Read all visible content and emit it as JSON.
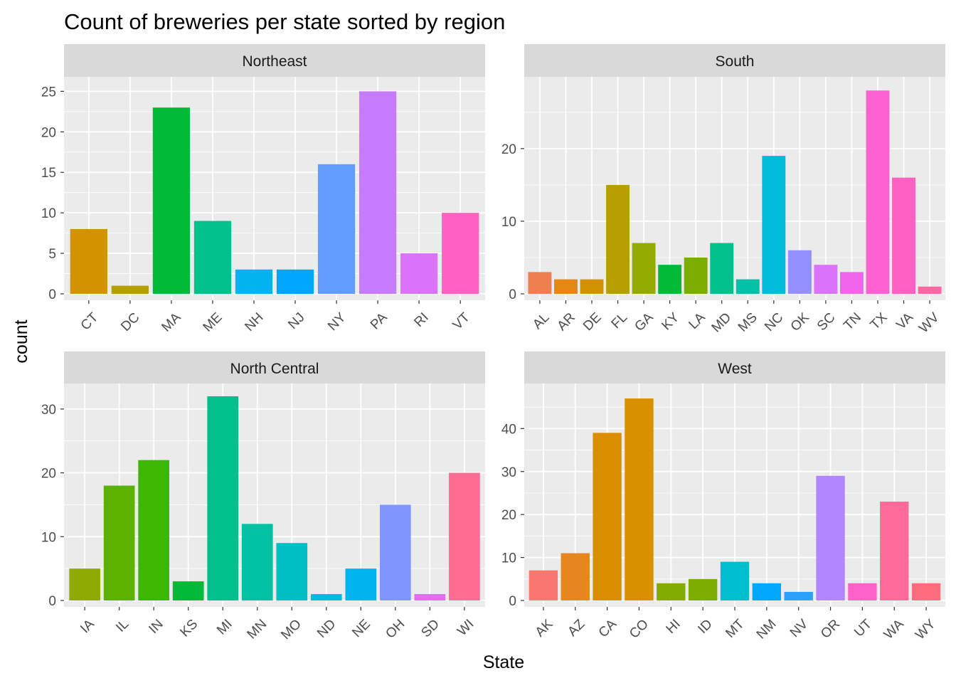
{
  "chart_data": {
    "type": "bar",
    "title": "Count of breweries per state sorted by region",
    "xlabel": "State",
    "ylabel": "count",
    "grid": true,
    "legend": "none",
    "panels": [
      {
        "name": "Northeast",
        "categories": [
          "CT",
          "DC",
          "MA",
          "ME",
          "NH",
          "NJ",
          "NY",
          "PA",
          "RI",
          "VT"
        ],
        "values": [
          8,
          1,
          23,
          9,
          3,
          3,
          16,
          25,
          5,
          10
        ],
        "colors": [
          "#D39200",
          "#B79F00",
          "#00BA38",
          "#00C08B",
          "#00B4F0",
          "#00A5FF",
          "#619CFF",
          "#C77CFF",
          "#DB72FB",
          "#FF61C3"
        ],
        "ylim": [
          0,
          26
        ],
        "yticks": [
          0,
          5,
          10,
          15,
          20,
          25
        ]
      },
      {
        "name": "South",
        "categories": [
          "AL",
          "AR",
          "DE",
          "FL",
          "GA",
          "KY",
          "LA",
          "MD",
          "MS",
          "NC",
          "OK",
          "SC",
          "TN",
          "TX",
          "VA",
          "WV"
        ],
        "values": [
          3,
          2,
          2,
          15,
          7,
          4,
          5,
          7,
          2,
          19,
          6,
          4,
          3,
          28,
          16,
          1
        ],
        "colors": [
          "#F07F4F",
          "#E68613",
          "#D39200",
          "#B79F00",
          "#93AA00",
          "#00BA38",
          "#7CAE00",
          "#00C08B",
          "#00C1A8",
          "#00BCD8",
          "#9590FF",
          "#DB72FB",
          "#F066EA",
          "#FD61D1",
          "#FF61C3",
          "#FF67A4"
        ],
        "ylim": [
          0,
          29
        ],
        "yticks": [
          0,
          10,
          20
        ]
      },
      {
        "name": "North Central",
        "categories": [
          "IA",
          "IL",
          "IN",
          "KS",
          "MI",
          "MN",
          "MO",
          "ND",
          "NE",
          "OH",
          "SD",
          "WI"
        ],
        "values": [
          5,
          18,
          22,
          3,
          32,
          12,
          9,
          1,
          5,
          15,
          1,
          20
        ],
        "colors": [
          "#8FAA00",
          "#5BB300",
          "#3DB700",
          "#00BA38",
          "#00C08B",
          "#00C1A4",
          "#00BFC4",
          "#00BAE0",
          "#00B4F0",
          "#7F96FF",
          "#EF67EB",
          "#FF6C91"
        ],
        "ylim": [
          0,
          33
        ],
        "yticks": [
          0,
          10,
          20,
          30
        ]
      },
      {
        "name": "West",
        "categories": [
          "AK",
          "AZ",
          "CA",
          "CO",
          "HI",
          "ID",
          "MT",
          "NM",
          "NV",
          "OR",
          "UT",
          "WA",
          "WY"
        ],
        "values": [
          7,
          11,
          39,
          47,
          4,
          5,
          9,
          4,
          2,
          29,
          4,
          23,
          4
        ],
        "colors": [
          "#F8766D",
          "#E7851E",
          "#DB8E00",
          "#D89000",
          "#82AD00",
          "#7CAE00",
          "#00BECE",
          "#00A9FF",
          "#2AA1FF",
          "#B186FF",
          "#FF61C9",
          "#FF6A98",
          "#FF6C7E"
        ],
        "ylim": [
          0,
          49
        ],
        "yticks": [
          0,
          10,
          20,
          30,
          40
        ]
      }
    ]
  },
  "style": {
    "panel_background": "#EBEBEB",
    "strip_background": "#D9D9D9",
    "grid_color": "#FFFFFF",
    "tick_color": "#333333"
  }
}
